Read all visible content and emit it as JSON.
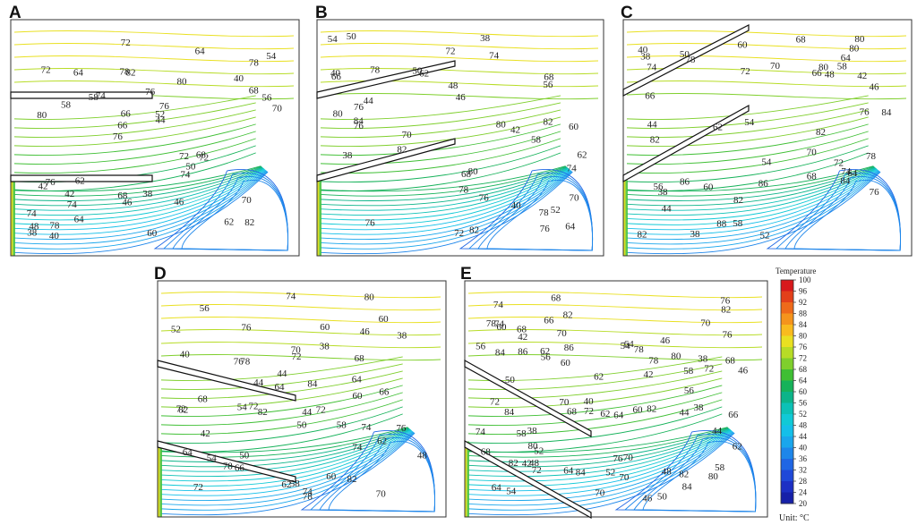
{
  "panels": [
    {
      "letter": "A",
      "labels": [
        "82",
        "80",
        "78",
        "76",
        "80",
        "78",
        "78",
        "76",
        "76",
        "74",
        "74",
        "74",
        "82",
        "76",
        "72",
        "72",
        "72",
        "70",
        "72",
        "68",
        "66",
        "68",
        "66",
        "64",
        "64",
        "62",
        "62",
        "70",
        "68",
        "60",
        "58",
        "58",
        "74",
        "64",
        "56",
        "52",
        "48",
        "46",
        "44",
        "42",
        "40",
        "54",
        "50",
        "46",
        "42",
        "40",
        "38",
        "38"
      ]
    },
    {
      "letter": "B",
      "labels": [
        "84",
        "82",
        "82",
        "80",
        "78",
        "82",
        "80",
        "78",
        "76",
        "76",
        "76",
        "74",
        "74",
        "72",
        "70",
        "72",
        "76",
        "78",
        "80",
        "76",
        "70",
        "68",
        "66",
        "64",
        "62",
        "60",
        "58",
        "56",
        "54",
        "52",
        "50",
        "48",
        "46",
        "44",
        "42",
        "40",
        "38",
        "50",
        "40",
        "38",
        "68",
        "62"
      ]
    },
    {
      "letter": "C",
      "labels": [
        "88",
        "86",
        "84",
        "84",
        "82",
        "82",
        "80",
        "80",
        "78",
        "78",
        "86",
        "82",
        "80",
        "82",
        "76",
        "76",
        "74",
        "74",
        "72",
        "72",
        "70",
        "70",
        "68",
        "68",
        "66",
        "66",
        "64",
        "64",
        "62",
        "60",
        "60",
        "58",
        "58",
        "56",
        "54",
        "52",
        "50",
        "48",
        "46",
        "44",
        "42",
        "40",
        "38",
        "38",
        "38",
        "54",
        "44"
      ]
    },
    {
      "letter": "D",
      "labels": [
        "84",
        "82",
        "80",
        "78",
        "76",
        "74",
        "76",
        "74",
        "76",
        "74",
        "74",
        "72",
        "72",
        "72",
        "70",
        "82",
        "78",
        "72",
        "70",
        "68",
        "68",
        "66",
        "66",
        "64",
        "64",
        "62",
        "62",
        "60",
        "60",
        "58",
        "58",
        "56",
        "54",
        "52",
        "50",
        "48",
        "46",
        "44",
        "42",
        "40",
        "38",
        "82",
        "78",
        "72",
        "64",
        "60",
        "54",
        "50",
        "44",
        "38",
        "60",
        "44"
      ]
    },
    {
      "letter": "E",
      "labels": [
        "84",
        "82",
        "80",
        "78",
        "76",
        "76",
        "74",
        "72",
        "70",
        "70",
        "68",
        "66",
        "64",
        "62",
        "60",
        "58",
        "56",
        "54",
        "52",
        "50",
        "48",
        "46",
        "44",
        "42",
        "40",
        "38",
        "38",
        "38",
        "68",
        "72",
        "70",
        "70",
        "68",
        "66",
        "64",
        "62",
        "86",
        "84",
        "82",
        "78",
        "76",
        "74",
        "72",
        "70",
        "68",
        "82",
        "80",
        "64",
        "62",
        "60",
        "58",
        "56",
        "54",
        "52",
        "50",
        "48",
        "46",
        "44",
        "42",
        "82",
        "84",
        "86",
        "80",
        "84",
        "82",
        "78",
        "74",
        "72",
        "70",
        "68",
        "46",
        "42",
        "64",
        "62",
        "60",
        "58",
        "56"
      ]
    }
  ],
  "legend": {
    "title": "Temperature",
    "ticks": [
      "100",
      "96",
      "92",
      "88",
      "84",
      "80",
      "76",
      "72",
      "68",
      "64",
      "60",
      "56",
      "52",
      "48",
      "44",
      "40",
      "36",
      "32",
      "28",
      "24",
      "20"
    ],
    "colors": [
      "#d7191c",
      "#e3401a",
      "#ee6a1a",
      "#f5941c",
      "#f9bb1e",
      "#e9e021",
      "#b7dc26",
      "#7fcf2c",
      "#3fbf34",
      "#16b25a",
      "#0cb489",
      "#0cc1b6",
      "#10c9d6",
      "#14bfe9",
      "#1aa6ec",
      "#1d86ea",
      "#1f66e4",
      "#1f48d8",
      "#1c2fc4",
      "#1620a8"
    ],
    "unit": "Unit: °C"
  }
}
